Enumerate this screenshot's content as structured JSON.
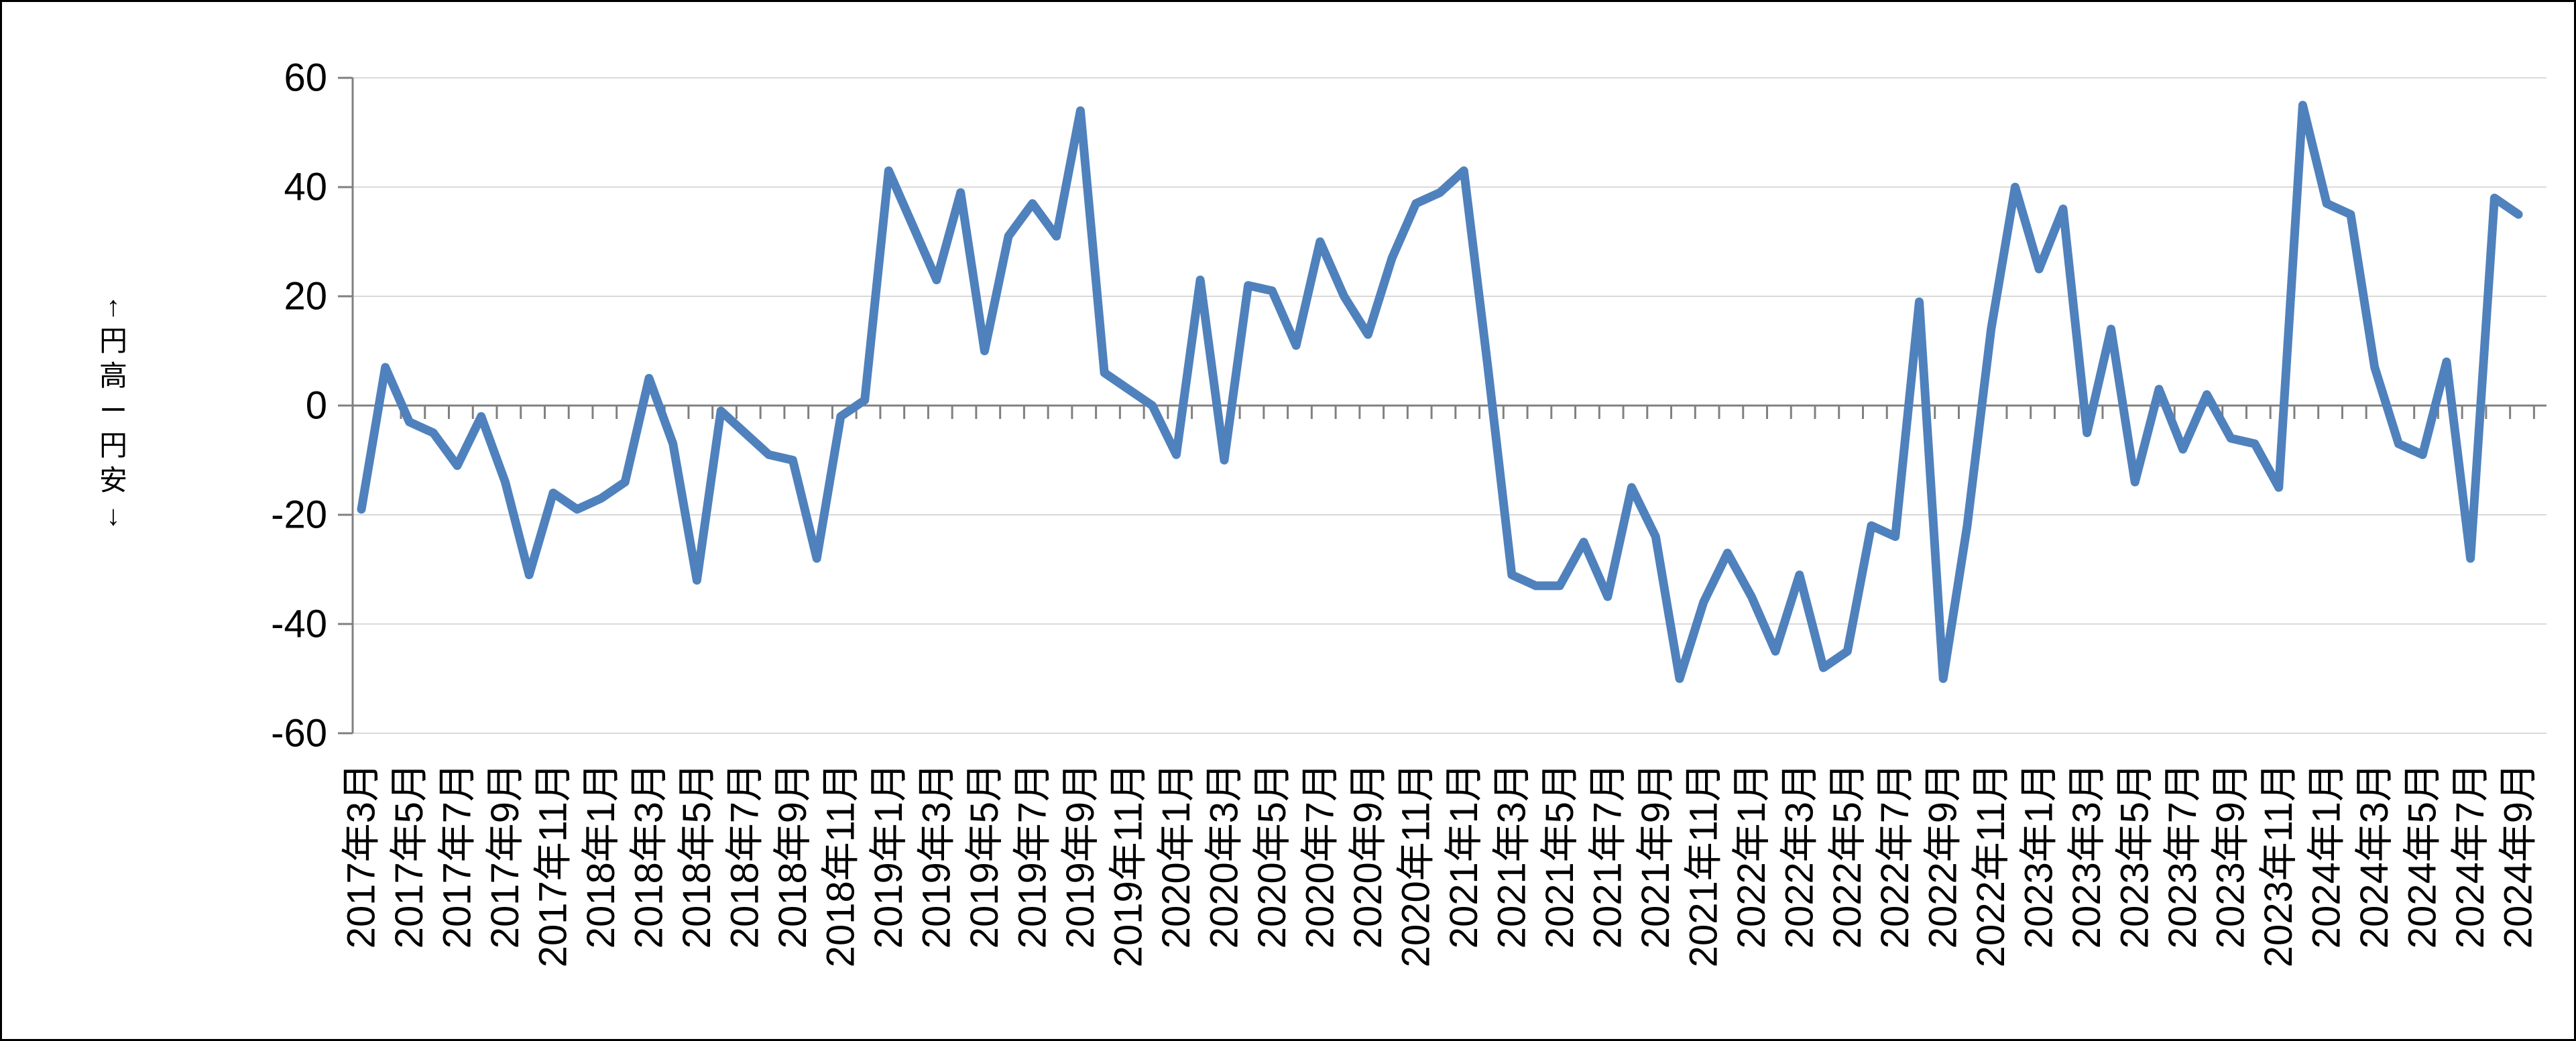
{
  "chart_data": {
    "type": "line",
    "title": "",
    "y_axis_title": "↑円高ー円安↓",
    "ylim": [
      -60,
      60
    ],
    "ytick_interval": 20,
    "ytick_labels": [
      "60",
      "40",
      "20",
      "0",
      "-20",
      "-40",
      "-60"
    ],
    "grid": true,
    "legend": "none",
    "line_color": "#4F81BD",
    "gridline_color": "#D9D9D9",
    "axis_color": "#808080",
    "text_color": "#000000",
    "x_tick_labels": [
      "2017年3月",
      "2017年5月",
      "2017年7月",
      "2017年9月",
      "2017年11月",
      "2018年1月",
      "2018年3月",
      "2018年5月",
      "2018年7月",
      "2018年9月",
      "2018年11月",
      "2019年1月",
      "2019年3月",
      "2019年5月",
      "2019年7月",
      "2019年9月",
      "2019年11月",
      "2020年1月",
      "2020年3月",
      "2020年5月",
      "2020年7月",
      "2020年9月",
      "2020年11月",
      "2021年1月",
      "2021年3月",
      "2021年5月",
      "2021年7月",
      "2021年9月",
      "2021年11月",
      "2022年1月",
      "2022年3月",
      "2022年5月",
      "2022年7月",
      "2022年9月",
      "2022年11月",
      "2023年1月",
      "2023年3月",
      "2023年5月",
      "2023年7月",
      "2023年9月",
      "2023年11月",
      "2024年1月",
      "2024年3月",
      "2024年5月",
      "2024年7月",
      "2024年9月"
    ],
    "months": [
      "2017年3月",
      "2017年4月",
      "2017年5月",
      "2017年6月",
      "2017年7月",
      "2017年8月",
      "2017年9月",
      "2017年10月",
      "2017年11月",
      "2017年12月",
      "2018年1月",
      "2018年2月",
      "2018年3月",
      "2018年4月",
      "2018年5月",
      "2018年6月",
      "2018年7月",
      "2018年8月",
      "2018年9月",
      "2018年10月",
      "2018年11月",
      "2018年12月",
      "2019年1月",
      "2019年2月",
      "2019年3月",
      "2019年4月",
      "2019年5月",
      "2019年6月",
      "2019年7月",
      "2019年8月",
      "2019年9月",
      "2019年10月",
      "2019年11月",
      "2019年12月",
      "2020年1月",
      "2020年2月",
      "2020年3月",
      "2020年4月",
      "2020年5月",
      "2020年6月",
      "2020年7月",
      "2020年8月",
      "2020年9月",
      "2020年10月",
      "2020年11月",
      "2020年12月",
      "2021年1月",
      "2021年2月",
      "2021年3月",
      "2021年4月",
      "2021年5月",
      "2021年6月",
      "2021年7月",
      "2021年8月",
      "2021年9月",
      "2021年10月",
      "2021年11月",
      "2021年12月",
      "2022年1月",
      "2022年2月",
      "2022年3月",
      "2022年4月",
      "2022年5月",
      "2022年6月",
      "2022年7月",
      "2022年8月",
      "2022年9月",
      "2022年10月",
      "2022年11月",
      "2022年12月",
      "2023年1月",
      "2023年2月",
      "2023年3月",
      "2023年4月",
      "2023年5月",
      "2023年6月",
      "2023年7月",
      "2023年8月",
      "2023年9月",
      "2023年10月",
      "2023年11月",
      "2023年12月",
      "2024年1月",
      "2024年2月",
      "2024年3月",
      "2024年4月",
      "2024年5月",
      "2024年6月",
      "2024年7月",
      "2024年8月",
      "2024年9月"
    ],
    "values": [
      -19,
      7,
      -3,
      -5,
      -11,
      -2,
      -14,
      -31,
      -16,
      -19,
      -17,
      -14,
      5,
      -7,
      -32,
      -1,
      -5,
      -9,
      -10,
      -28,
      -2,
      1,
      43,
      33,
      23,
      39,
      10,
      31,
      37,
      31,
      54,
      6,
      3,
      0,
      -9,
      23,
      -10,
      22,
      21,
      11,
      30,
      20,
      13,
      27,
      37,
      39,
      43,
      7,
      -31,
      -33,
      -33,
      -25,
      -35,
      -15,
      -24,
      -50,
      -36,
      -27,
      -35,
      -45,
      -31,
      -48,
      -45,
      -22,
      -24,
      19,
      -50,
      -22,
      14,
      40,
      25,
      36,
      -5,
      14,
      -14,
      3,
      -8,
      2,
      -6,
      -7,
      -15,
      55,
      37,
      35,
      7,
      -7,
      -9,
      8,
      -28,
      38,
      35
    ]
  }
}
